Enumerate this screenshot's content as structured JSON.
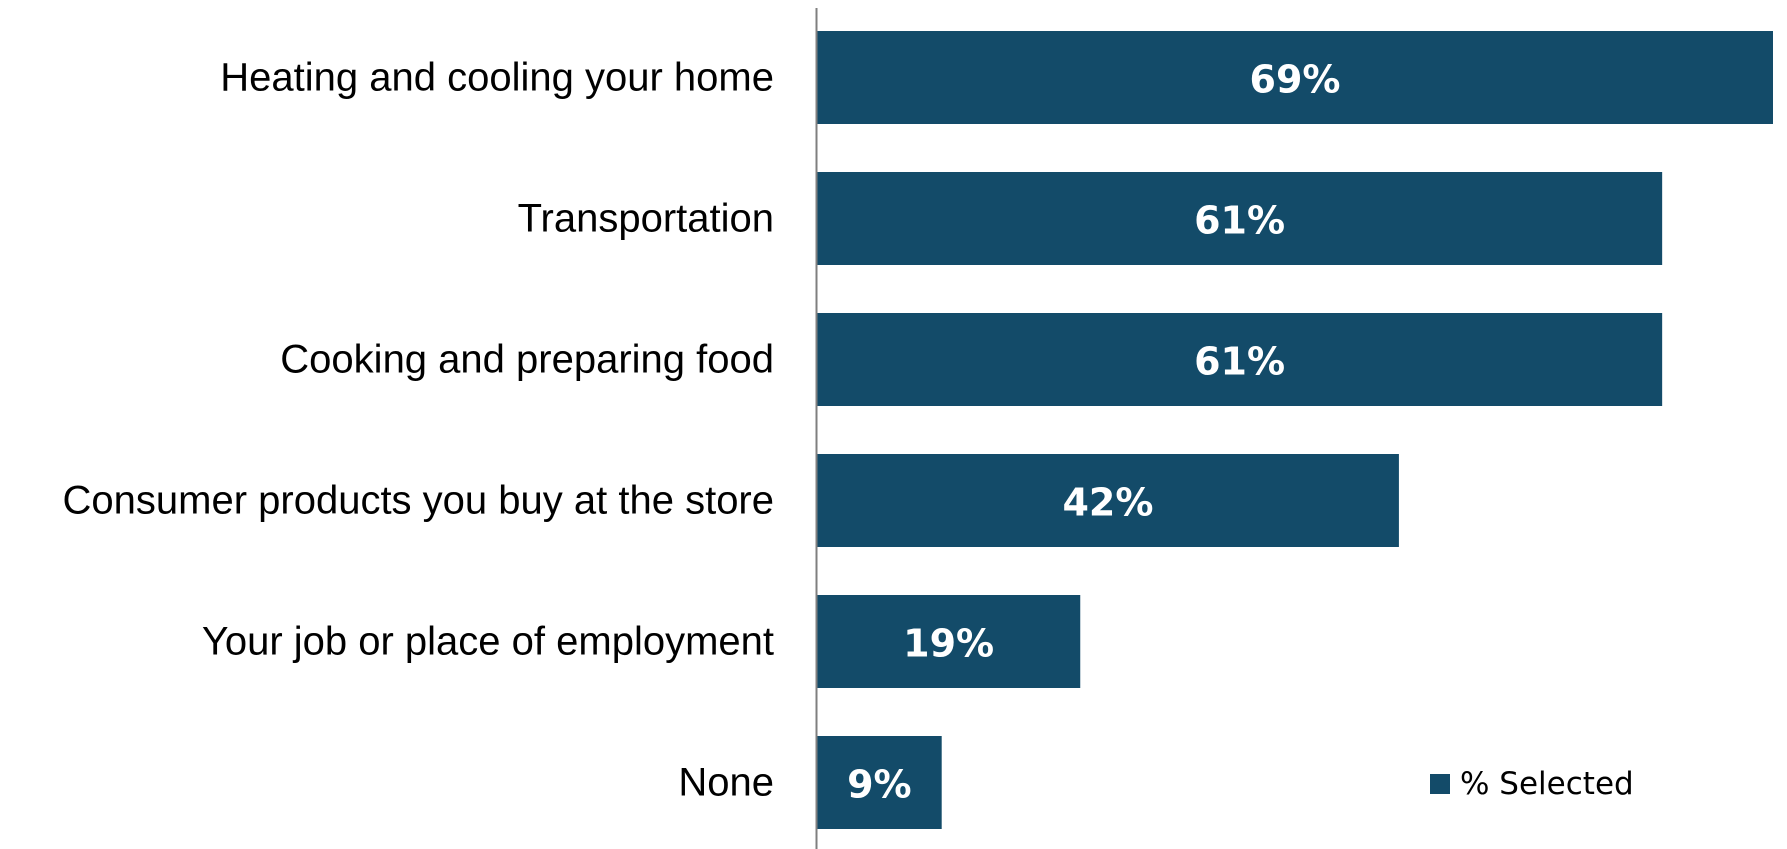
{
  "chart_data": {
    "type": "bar",
    "orientation": "horizontal",
    "categories": [
      "Heating and cooling your home",
      "Transportation",
      "Cooking and preparing food",
      "Consumer products you buy at the store",
      "Your job or place of employment",
      "None"
    ],
    "series": [
      {
        "name": "% Selected",
        "values": [
          69,
          61,
          61,
          42,
          19,
          9
        ],
        "labels": [
          "69%",
          "61%",
          "61%",
          "42%",
          "19%",
          "9%"
        ]
      }
    ],
    "xlim": [
      0,
      69
    ],
    "grid": false,
    "legend_placement": "bottom-right",
    "colors": {
      "bar": "#134B69",
      "axis": "#7f7f7f"
    }
  }
}
